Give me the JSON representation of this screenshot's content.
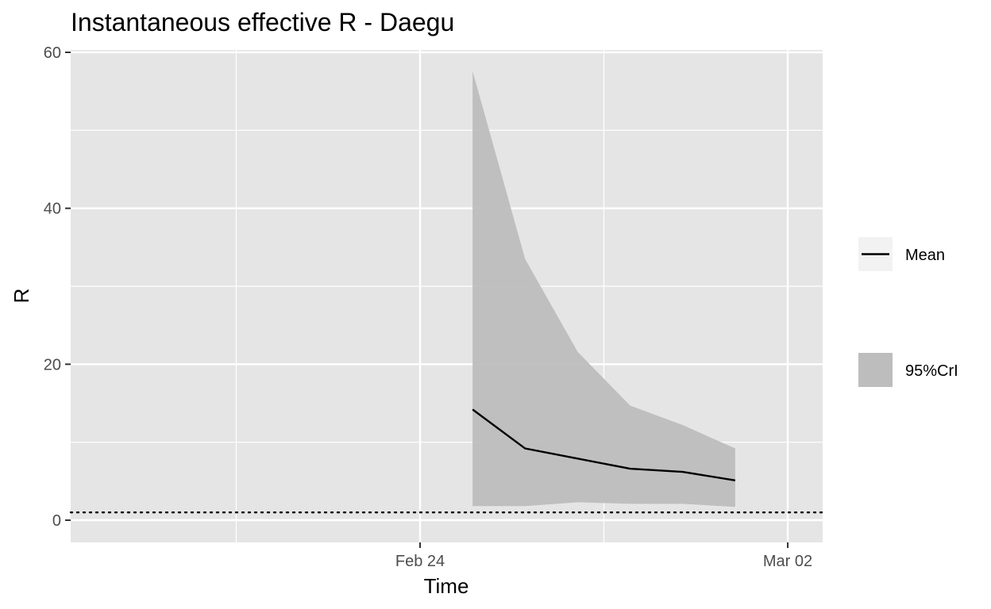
{
  "chart_data": {
    "type": "line",
    "title": "Instantaneous effective R -  Daegu",
    "xlabel": "Time",
    "ylabel": "R",
    "x_ticks": [
      "Feb 24",
      "Mar 02"
    ],
    "y_ticks": [
      0,
      20,
      40,
      60
    ],
    "xlim": [
      "2020-02-18",
      "2020-03-02"
    ],
    "ylim": [
      -3,
      60
    ],
    "grid": true,
    "legend_position": "right",
    "reference_line": {
      "y": 1,
      "style": "dotted"
    },
    "series": [
      {
        "name": "Mean",
        "kind": "line",
        "color": "#000000",
        "points": [
          {
            "x": "2020-02-25",
            "y": 14.2
          },
          {
            "x": "2020-02-26",
            "y": 9.2
          },
          {
            "x": "2020-02-27",
            "y": 7.9
          },
          {
            "x": "2020-02-28",
            "y": 6.6
          },
          {
            "x": "2020-02-29",
            "y": 6.2
          },
          {
            "x": "2020-03-01",
            "y": 5.1
          }
        ]
      },
      {
        "name": "95%CrI",
        "kind": "ribbon",
        "color": "#bdbdbd",
        "points": [
          {
            "x": "2020-02-25",
            "lower": 1.8,
            "upper": 57.6
          },
          {
            "x": "2020-02-26",
            "lower": 1.8,
            "upper": 33.5
          },
          {
            "x": "2020-02-27",
            "lower": 2.3,
            "upper": 21.6
          },
          {
            "x": "2020-02-28",
            "lower": 2.1,
            "upper": 14.7
          },
          {
            "x": "2020-02-29",
            "lower": 2.1,
            "upper": 12.2
          },
          {
            "x": "2020-03-01",
            "lower": 1.7,
            "upper": 9.2
          }
        ]
      }
    ]
  },
  "colors": {
    "panel_background": "#e5e5e5",
    "grid_major": "#ffffff",
    "ribbon_fill": "#bdbdbd",
    "line": "#000000",
    "legend_key_background": "#f2f2f2"
  }
}
